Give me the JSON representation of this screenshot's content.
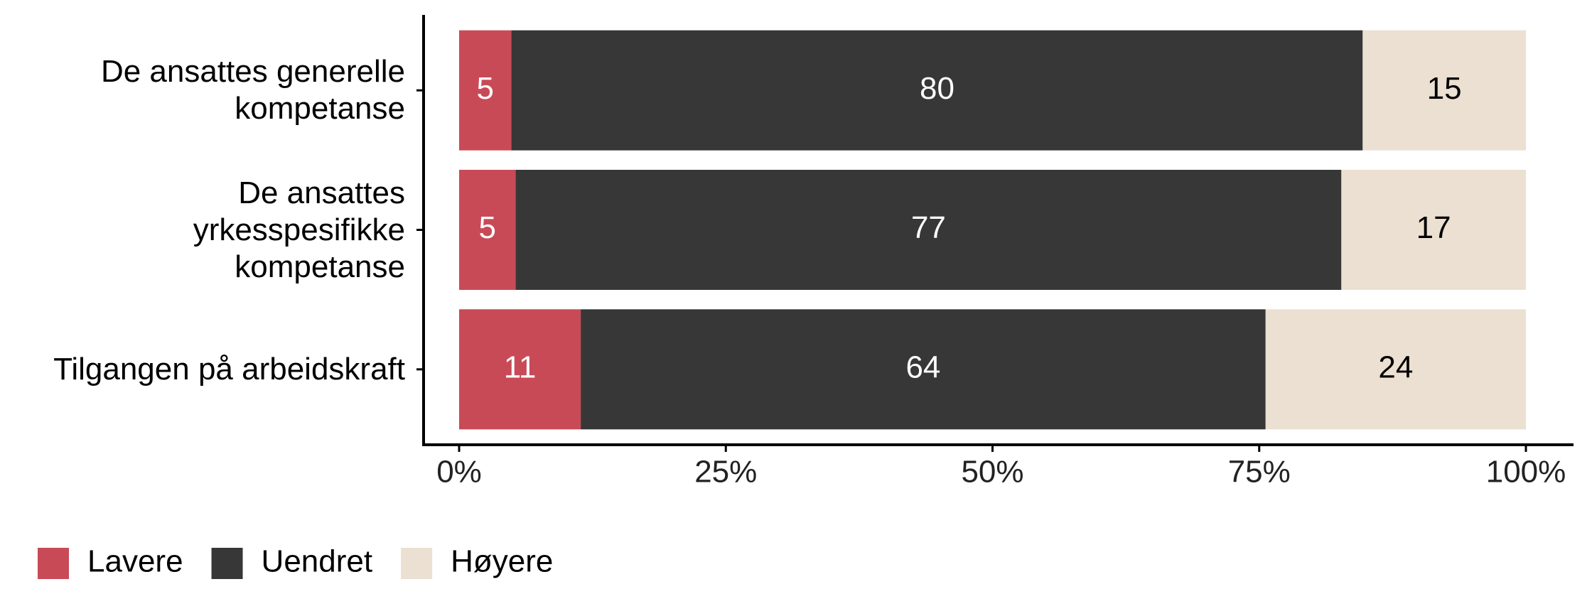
{
  "chart_data": {
    "type": "stacked-bar-horizontal",
    "categories": [
      "De ansattes generelle\nkompetanse",
      "De ansattes\nyrkesspesifikke\nkompetanse",
      "Tilgangen på arbeidskraft"
    ],
    "series": [
      {
        "name": "Lavere",
        "color": "#c94a57",
        "label_color": "#ffffff",
        "values": [
          4.9,
          5.3,
          11.4
        ],
        "value_labels": [
          "5",
          "5",
          "11"
        ]
      },
      {
        "name": "Uendret",
        "color": "#373737",
        "label_color": "#ffffff",
        "values": [
          79.8,
          77.4,
          64.2
        ],
        "value_labels": [
          "80",
          "77",
          "64"
        ]
      },
      {
        "name": "Høyere",
        "color": "#ebe0d1",
        "label_color": "#000000",
        "values": [
          15.3,
          17.3,
          24.4
        ],
        "value_labels": [
          "15",
          "17",
          "24"
        ]
      }
    ],
    "xlim": [
      0,
      100
    ],
    "xticks": [
      {
        "value": 0,
        "label": "0%"
      },
      {
        "value": 25,
        "label": "25%"
      },
      {
        "value": 50,
        "label": "50%"
      },
      {
        "value": 75,
        "label": "75%"
      },
      {
        "value": 100,
        "label": "100%"
      }
    ],
    "legend": "bottom-left"
  }
}
